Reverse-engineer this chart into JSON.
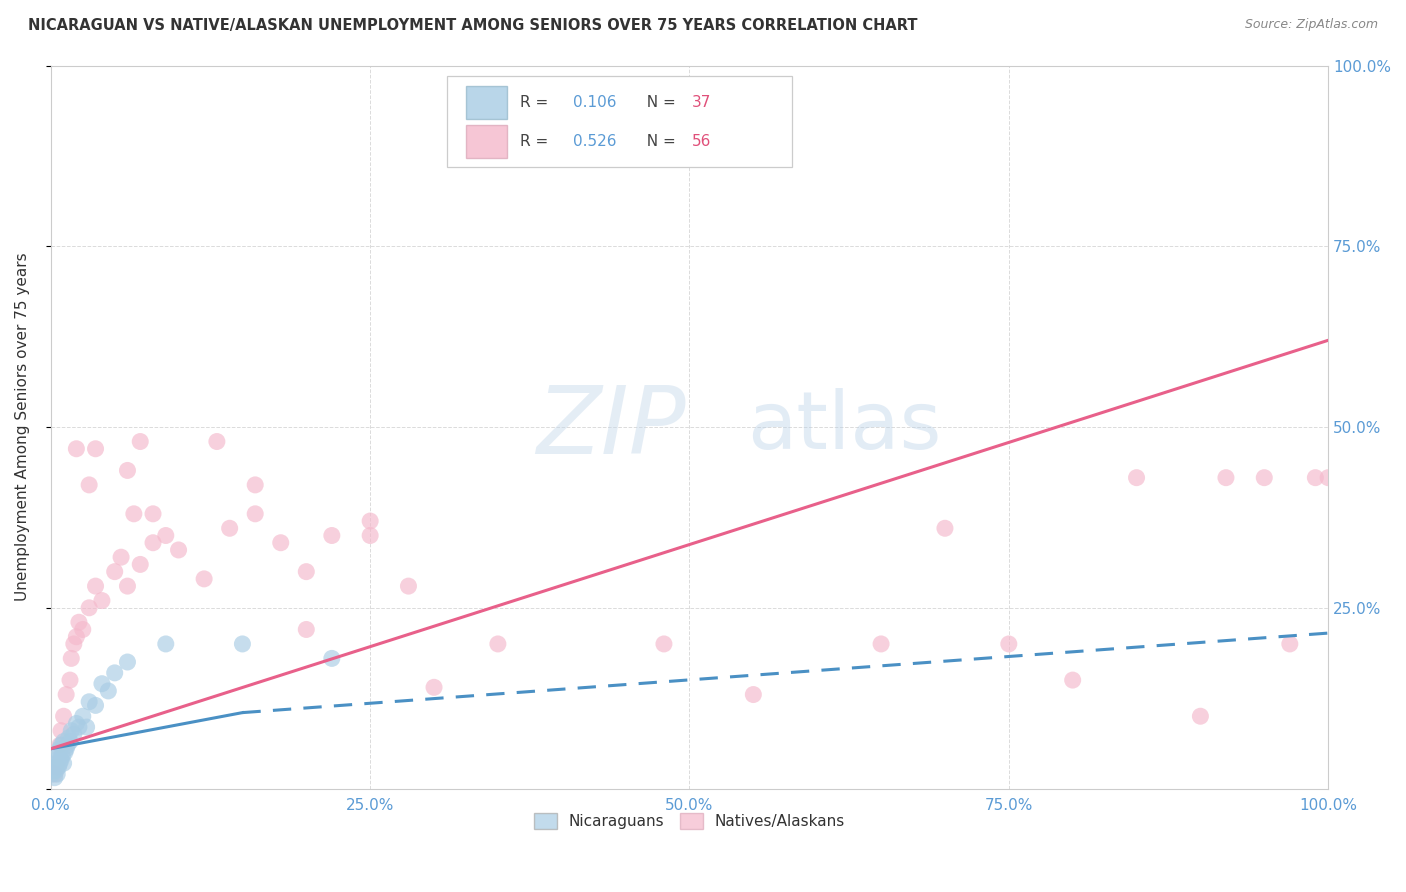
{
  "title": "NICARAGUAN VS NATIVE/ALASKAN UNEMPLOYMENT AMONG SENIORS OVER 75 YEARS CORRELATION CHART",
  "source": "Source: ZipAtlas.com",
  "ylabel": "Unemployment Among Seniors over 75 years",
  "watermark_zip": "ZIP",
  "watermark_atlas": "atlas",
  "legend_label1": "Nicaraguans",
  "legend_label2": "Natives/Alaskans",
  "r1": "0.106",
  "n1": "37",
  "r2": "0.526",
  "n2": "56",
  "blue_color": "#a8cce4",
  "pink_color": "#f4b8cb",
  "blue_line_color": "#4a90c4",
  "pink_line_color": "#e8608a",
  "title_color": "#333333",
  "tick_color": "#5b9bd5",
  "background_color": "#ffffff",
  "grid_color": "#cccccc",
  "blue_x": [
    0.001,
    0.002,
    0.003,
    0.003,
    0.004,
    0.004,
    0.005,
    0.005,
    0.006,
    0.006,
    0.007,
    0.007,
    0.008,
    0.008,
    0.009,
    0.01,
    0.01,
    0.011,
    0.012,
    0.013,
    0.014,
    0.015,
    0.016,
    0.018,
    0.02,
    0.022,
    0.025,
    0.028,
    0.03,
    0.035,
    0.04,
    0.045,
    0.05,
    0.06,
    0.09,
    0.15,
    0.22
  ],
  "blue_y": [
    0.02,
    0.025,
    0.015,
    0.03,
    0.025,
    0.035,
    0.02,
    0.04,
    0.03,
    0.05,
    0.035,
    0.055,
    0.04,
    0.06,
    0.045,
    0.035,
    0.065,
    0.05,
    0.055,
    0.06,
    0.07,
    0.065,
    0.08,
    0.075,
    0.09,
    0.085,
    0.1,
    0.085,
    0.12,
    0.115,
    0.145,
    0.135,
    0.16,
    0.175,
    0.2,
    0.2,
    0.18
  ],
  "pink_x": [
    0.003,
    0.005,
    0.007,
    0.008,
    0.01,
    0.012,
    0.015,
    0.016,
    0.018,
    0.02,
    0.022,
    0.025,
    0.03,
    0.035,
    0.04,
    0.05,
    0.055,
    0.06,
    0.07,
    0.08,
    0.09,
    0.1,
    0.12,
    0.14,
    0.16,
    0.18,
    0.2,
    0.22,
    0.25,
    0.28,
    0.03,
    0.06,
    0.08,
    0.16,
    0.25,
    0.35,
    0.02,
    0.035,
    0.07,
    0.13,
    0.065,
    0.2,
    0.3,
    0.48,
    0.55,
    0.65,
    0.7,
    0.75,
    0.8,
    0.85,
    0.9,
    0.92,
    0.95,
    0.97,
    0.99,
    1.0
  ],
  "pink_y": [
    0.02,
    0.03,
    0.06,
    0.08,
    0.1,
    0.13,
    0.15,
    0.18,
    0.2,
    0.21,
    0.23,
    0.22,
    0.25,
    0.28,
    0.26,
    0.3,
    0.32,
    0.28,
    0.31,
    0.34,
    0.35,
    0.33,
    0.29,
    0.36,
    0.38,
    0.34,
    0.3,
    0.35,
    0.37,
    0.28,
    0.42,
    0.44,
    0.38,
    0.42,
    0.35,
    0.2,
    0.47,
    0.47,
    0.48,
    0.48,
    0.38,
    0.22,
    0.14,
    0.2,
    0.13,
    0.2,
    0.36,
    0.2,
    0.15,
    0.43,
    0.1,
    0.43,
    0.43,
    0.2,
    0.43,
    0.43
  ],
  "blue_line_x0": 0.0,
  "blue_line_x_solid_end": 0.15,
  "blue_line_x1": 1.0,
  "blue_line_y0": 0.055,
  "blue_line_y_solid_end": 0.105,
  "blue_line_y1": 0.215,
  "pink_line_x0": 0.0,
  "pink_line_x1": 1.0,
  "pink_line_y0": 0.055,
  "pink_line_y1": 0.62,
  "xlim": [
    0.0,
    1.0
  ],
  "ylim": [
    0.0,
    1.0
  ],
  "xticks": [
    0.0,
    0.25,
    0.5,
    0.75,
    1.0
  ],
  "yticks": [
    0.0,
    0.25,
    0.5,
    0.75,
    1.0
  ],
  "xtick_labels": [
    "0.0%",
    "25.0%",
    "50.0%",
    "75.0%",
    "100.0%"
  ],
  "ytick_labels": [
    "",
    "25.0%",
    "50.0%",
    "75.0%",
    "100.0%"
  ]
}
